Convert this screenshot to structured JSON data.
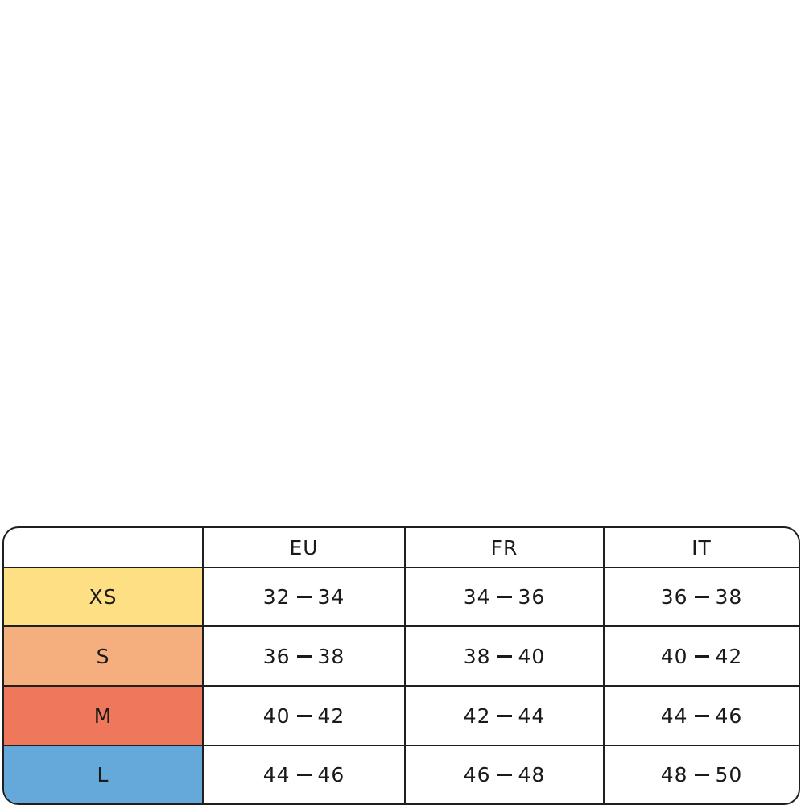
{
  "header": {
    "corner": "",
    "columns": [
      "EU",
      "FR",
      "IT"
    ]
  },
  "rows": [
    {
      "size": "XS",
      "color": "#FEDF83",
      "values": [
        [
          "32",
          "34"
        ],
        [
          "34",
          "36"
        ],
        [
          "36",
          "38"
        ]
      ]
    },
    {
      "size": "S",
      "color": "#F5AF7E",
      "values": [
        [
          "36",
          "38"
        ],
        [
          "38",
          "40"
        ],
        [
          "40",
          "42"
        ]
      ]
    },
    {
      "size": "M",
      "color": "#EE775C",
      "values": [
        [
          "40",
          "42"
        ],
        [
          "42",
          "44"
        ],
        [
          "44",
          "46"
        ]
      ]
    },
    {
      "size": "L",
      "color": "#65A8DA",
      "values": [
        [
          "44",
          "46"
        ],
        [
          "46",
          "48"
        ],
        [
          "48",
          "50"
        ]
      ]
    }
  ]
}
